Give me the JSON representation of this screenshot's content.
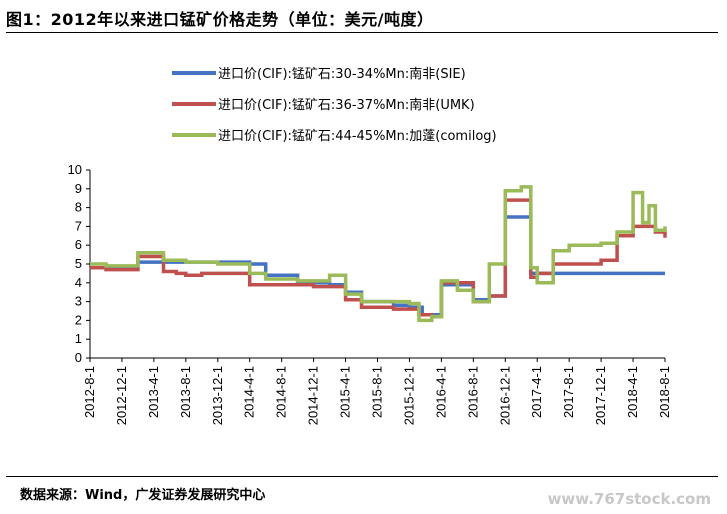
{
  "title": "图1：2012年以来进口锰矿价格走势（单位：美元/吨度）",
  "source": "数据来源：Wind，广发证券发展研究中心",
  "watermark": "www.767stock.com",
  "chart_data": {
    "type": "line",
    "ylim": [
      0,
      10
    ],
    "yticks": [
      "0",
      "1",
      "2",
      "3",
      "4",
      "5",
      "6",
      "7",
      "8",
      "9",
      "10"
    ],
    "xticks": [
      "2012-8-1",
      "2012-12-1",
      "2013-4-1",
      "2013-8-1",
      "2013-12-1",
      "2014-4-1",
      "2014-8-1",
      "2014-12-1",
      "2015-4-1",
      "2015-8-1",
      "2015-12-1",
      "2016-4-1",
      "2016-8-1",
      "2016-12-1",
      "2017-4-1",
      "2017-8-1",
      "2017-12-1",
      "2018-4-1",
      "2018-8-1"
    ],
    "legend_position": "top",
    "series": [
      {
        "name": "进口价(CIF):锰矿石:30-34%Mn:南非(SIE)",
        "color": "#4472C4",
        "points": [
          [
            0,
            4.8
          ],
          [
            0.5,
            4.8
          ],
          [
            1,
            4.8
          ],
          [
            1.5,
            5.1
          ],
          [
            2,
            5.1
          ],
          [
            2.5,
            5.1
          ],
          [
            3,
            5.1
          ],
          [
            3.5,
            5.1
          ],
          [
            4,
            5.1
          ],
          [
            4.5,
            5.1
          ],
          [
            5,
            5.0
          ],
          [
            5.5,
            4.4
          ],
          [
            6,
            4.4
          ],
          [
            6.5,
            4.0
          ],
          [
            7,
            4.0
          ],
          [
            7.5,
            3.9
          ],
          [
            8,
            3.5
          ],
          [
            8.5,
            3.0
          ],
          [
            9,
            3.0
          ],
          [
            9.5,
            2.8
          ],
          [
            10,
            2.7
          ],
          [
            10.4,
            2.3
          ],
          [
            10.6,
            2.3
          ],
          [
            11,
            3.9
          ],
          [
            11.5,
            3.9
          ],
          [
            12,
            3.1
          ],
          [
            12.5,
            3.3
          ],
          [
            13,
            7.5
          ],
          [
            13.5,
            7.5
          ],
          [
            13.8,
            4.5
          ],
          [
            14,
            4.5
          ],
          [
            14.5,
            4.5
          ],
          [
            15,
            4.5
          ],
          [
            16,
            4.5
          ],
          [
            17,
            4.5
          ],
          [
            18,
            4.5
          ]
        ]
      },
      {
        "name": "进口价(CIF):锰矿石:36-37%Mn:南非(UMK)",
        "color": "#C0504D",
        "points": [
          [
            0,
            4.8
          ],
          [
            0.5,
            4.7
          ],
          [
            1,
            4.7
          ],
          [
            1.5,
            5.4
          ],
          [
            2,
            5.4
          ],
          [
            2.3,
            4.6
          ],
          [
            2.7,
            4.5
          ],
          [
            3,
            4.4
          ],
          [
            3.5,
            4.5
          ],
          [
            4,
            4.5
          ],
          [
            4.5,
            4.5
          ],
          [
            5,
            3.9
          ],
          [
            5.5,
            3.9
          ],
          [
            6,
            3.9
          ],
          [
            6.5,
            3.9
          ],
          [
            7,
            3.8
          ],
          [
            7.5,
            3.8
          ],
          [
            8,
            3.1
          ],
          [
            8.5,
            2.7
          ],
          [
            9,
            2.7
          ],
          [
            9.5,
            2.6
          ],
          [
            10,
            2.6
          ],
          [
            10.3,
            2.3
          ],
          [
            10.7,
            2.2
          ],
          [
            11,
            4.0
          ],
          [
            11.3,
            4.0
          ],
          [
            11.5,
            4.0
          ],
          [
            12,
            3.0
          ],
          [
            12.5,
            3.3
          ],
          [
            13,
            8.4
          ],
          [
            13.5,
            8.4
          ],
          [
            13.8,
            4.3
          ],
          [
            14,
            4.5
          ],
          [
            14.5,
            5.0
          ],
          [
            15,
            5.0
          ],
          [
            15.5,
            5.0
          ],
          [
            16,
            5.2
          ],
          [
            16.5,
            6.5
          ],
          [
            17,
            7.0
          ],
          [
            17.5,
            7.0
          ],
          [
            17.7,
            6.7
          ],
          [
            18,
            6.4
          ]
        ]
      },
      {
        "name": "进口价(CIF):锰矿石:44-45%Mn:加蓬(comilog)",
        "color": "#9BBB59",
        "points": [
          [
            0,
            5.0
          ],
          [
            0.5,
            4.9
          ],
          [
            1,
            4.9
          ],
          [
            1.5,
            5.6
          ],
          [
            2,
            5.6
          ],
          [
            2.3,
            5.2
          ],
          [
            2.7,
            5.2
          ],
          [
            3,
            5.1
          ],
          [
            3.5,
            5.1
          ],
          [
            4,
            5.0
          ],
          [
            4.5,
            5.0
          ],
          [
            5,
            4.5
          ],
          [
            5.5,
            4.2
          ],
          [
            6,
            4.2
          ],
          [
            6.5,
            4.1
          ],
          [
            7,
            4.1
          ],
          [
            7.5,
            4.4
          ],
          [
            8,
            3.4
          ],
          [
            8.5,
            3.0
          ],
          [
            9,
            3.0
          ],
          [
            9.5,
            3.0
          ],
          [
            10,
            2.9
          ],
          [
            10.3,
            2.0
          ],
          [
            10.7,
            2.2
          ],
          [
            11,
            4.1
          ],
          [
            11.3,
            4.1
          ],
          [
            11.5,
            3.6
          ],
          [
            12,
            3.0
          ],
          [
            12.5,
            5.0
          ],
          [
            13,
            8.9
          ],
          [
            13.5,
            9.1
          ],
          [
            13.8,
            4.8
          ],
          [
            14,
            4.0
          ],
          [
            14.5,
            5.7
          ],
          [
            15,
            6.0
          ],
          [
            15.5,
            6.0
          ],
          [
            16,
            6.1
          ],
          [
            16.5,
            6.7
          ],
          [
            17,
            8.8
          ],
          [
            17.3,
            7.2
          ],
          [
            17.5,
            8.1
          ],
          [
            17.7,
            6.8
          ],
          [
            18,
            7.0
          ]
        ]
      }
    ]
  }
}
